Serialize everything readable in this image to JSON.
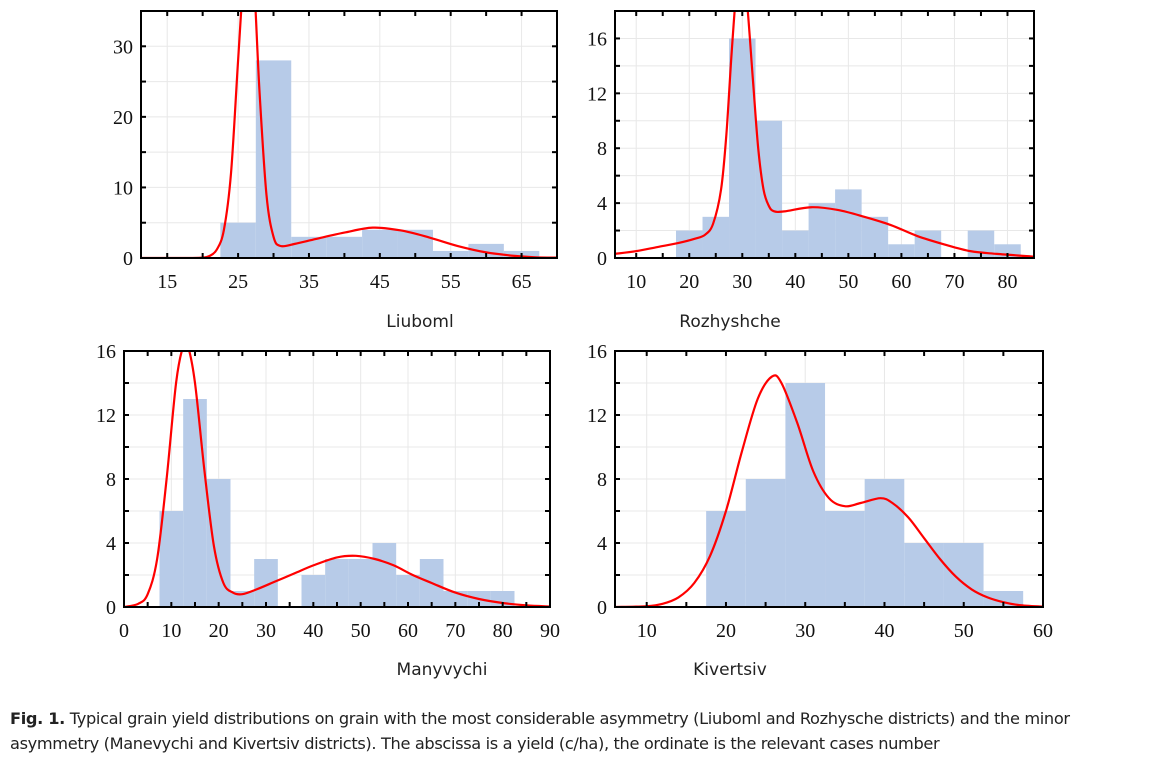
{
  "figure": {
    "caption_label": "Fig. 1.",
    "caption_text": " Typical grain yield distributions on grain with the most considerable asymmetry (Liuboml and Rozhysche districts) and the minor asymmetry (Manevychi and Kivertsiv districts). The abscissa is a yield (c/ha), the ordinate is the relevant cases number"
  },
  "colors": {
    "bar": "#b7cbe8",
    "curve": "#ff0000",
    "frame": "#000000",
    "grid": "#e8e8e8"
  },
  "chart_data": [
    {
      "type": "bar",
      "title": "Liuboml",
      "xlabel": "Liuboml",
      "ylabel": "",
      "xlim": [
        11.3,
        70
      ],
      "ylim": [
        0,
        35
      ],
      "xticks": [
        15,
        25,
        35,
        45,
        55,
        65
      ],
      "yticks": [
        0,
        10,
        20,
        30
      ],
      "grid": true,
      "bin_width": 5,
      "bin_starts": [
        22.5,
        27.5,
        32.5,
        37.5,
        42.5,
        47.5,
        52.5,
        57.5,
        62.5
      ],
      "values": [
        5,
        28,
        3,
        3,
        4,
        4,
        1,
        2,
        1
      ],
      "curve": {
        "x": [
          11.3,
          18,
          20,
          21,
          22,
          23,
          24,
          25,
          25.8,
          26.5,
          27.2,
          28,
          29,
          30,
          31,
          33,
          36,
          40,
          44,
          48,
          52,
          56,
          60,
          64,
          67,
          70
        ],
        "y": [
          0,
          0,
          0.05,
          0.3,
          1.2,
          4,
          12,
          28,
          40,
          44,
          40,
          24,
          9,
          3,
          1.7,
          2,
          2.7,
          3.6,
          4.3,
          3.9,
          2.9,
          1.7,
          0.8,
          0.3,
          0.1,
          0.05
        ]
      }
    },
    {
      "type": "bar",
      "title": "Rozhyshche",
      "xlabel": "Rozhyshche",
      "ylabel": "",
      "xlim": [
        6,
        85
      ],
      "ylim": [
        0,
        18
      ],
      "xticks": [
        10,
        20,
        30,
        40,
        50,
        60,
        70,
        80
      ],
      "yticks": [
        0,
        4,
        8,
        12,
        16
      ],
      "grid": true,
      "bin_width": 5,
      "bin_starts": [
        17.5,
        22.5,
        27.5,
        32.5,
        37.5,
        42.5,
        47.5,
        52.5,
        57.5,
        62.5,
        67.5,
        72.5,
        77.5
      ],
      "values": [
        2,
        3,
        16,
        10,
        2,
        4,
        5,
        3,
        1,
        2,
        0,
        2,
        1
      ],
      "curve": {
        "x": [
          6,
          10,
          14,
          18,
          21,
          23,
          24.5,
          26,
          27,
          28,
          29,
          29.8,
          30.8,
          32,
          33,
          34,
          35,
          36,
          38,
          43,
          48,
          53,
          58,
          63,
          68,
          73,
          78,
          85
        ],
        "y": [
          0.3,
          0.5,
          0.8,
          1.1,
          1.4,
          1.7,
          2.5,
          5,
          9,
          15,
          20,
          21,
          19,
          13,
          8,
          5,
          3.8,
          3.4,
          3.4,
          3.7,
          3.5,
          3.0,
          2.4,
          1.6,
          1.0,
          0.5,
          0.3,
          0.1
        ]
      }
    },
    {
      "type": "bar",
      "title": "Manyvychi",
      "xlabel": "Manyvychi",
      "ylabel": "",
      "xlim": [
        0,
        90
      ],
      "ylim": [
        0,
        16
      ],
      "xticks": [
        0,
        10,
        20,
        30,
        40,
        50,
        60,
        70,
        80,
        90
      ],
      "yticks": [
        0,
        4,
        8,
        12,
        16
      ],
      "grid": true,
      "bin_width": 5,
      "bin_starts": [
        7.5,
        12.5,
        17.5,
        22.5,
        27.5,
        32.5,
        37.5,
        42.5,
        47.5,
        52.5,
        57.5,
        62.5,
        67.5,
        72.5,
        77.5
      ],
      "values": [
        6,
        13,
        8,
        1,
        3,
        0,
        2,
        3,
        3,
        4,
        2,
        3,
        1,
        1,
        1
      ],
      "curve": {
        "x": [
          0,
          3,
          5,
          7,
          9,
          11,
          12.5,
          13.5,
          15,
          17,
          19,
          21,
          23,
          25,
          28,
          32,
          36,
          40,
          45,
          49,
          53,
          57,
          61,
          65,
          70,
          75,
          80,
          85,
          90
        ],
        "y": [
          0,
          0.2,
          0.8,
          3,
          8,
          14,
          16.3,
          16.3,
          14,
          8.5,
          3.8,
          1.5,
          0.9,
          0.8,
          1.1,
          1.6,
          2.1,
          2.6,
          3.1,
          3.2,
          3.0,
          2.6,
          2.0,
          1.5,
          0.9,
          0.5,
          0.25,
          0.1,
          0.03
        ]
      }
    },
    {
      "type": "bar",
      "title": "Kivertsiv",
      "xlabel": "Kivertsiv",
      "ylabel": "",
      "xlim": [
        6,
        60
      ],
      "ylim": [
        0,
        16
      ],
      "xticks": [
        10,
        20,
        30,
        40,
        50,
        60
      ],
      "yticks": [
        0,
        4,
        8,
        12,
        16
      ],
      "grid": true,
      "bin_width": 5,
      "bin_starts": [
        17.5,
        22.5,
        27.5,
        32.5,
        37.5,
        42.5,
        47.5,
        52.5
      ],
      "values": [
        6,
        8,
        14,
        6,
        8,
        4,
        4,
        1
      ],
      "curve": {
        "x": [
          6,
          10,
          12,
          14,
          16,
          18,
          20,
          22,
          24,
          25.8,
          27,
          29,
          31,
          33,
          35,
          37,
          39.5,
          41,
          43,
          45,
          47,
          49,
          51,
          53,
          55,
          57,
          60
        ],
        "y": [
          0,
          0.05,
          0.2,
          0.6,
          1.5,
          3.2,
          6,
          9.7,
          13,
          14.4,
          14,
          11.5,
          8.5,
          6.8,
          6.3,
          6.5,
          6.8,
          6.5,
          5.6,
          4.3,
          3.0,
          1.9,
          1.1,
          0.6,
          0.3,
          0.12,
          0.02
        ]
      }
    }
  ]
}
